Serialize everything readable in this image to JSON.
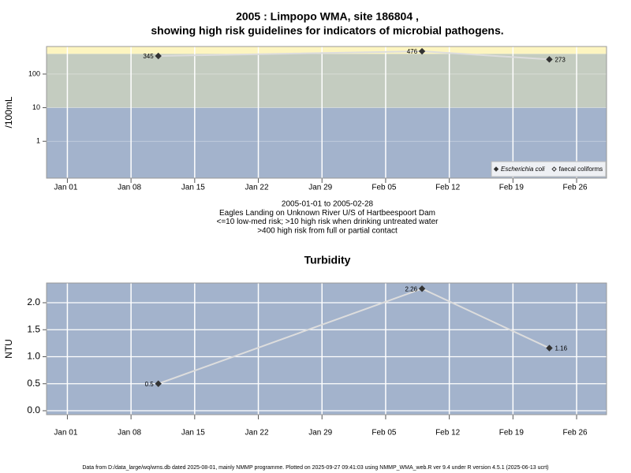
{
  "chart_data": [
    {
      "type": "line",
      "log_y": true,
      "title": [
        "2005 : Limpopo WMA, site 186804 ,",
        "showing high risk guidelines for indicators of microbial pathogens."
      ],
      "notes": [
        "2005-01-01 to 2005-02-28",
        "Eagles Landing on Unknown River U/S of Hartbeespoort Dam",
        "<=10 low-med risk; >10 high risk when drinking untreated water",
        ">400 high risk from full or partial contact"
      ],
      "ylabel": "/100mL",
      "x": [
        "2005-01-11",
        "2005-02-09",
        "2005-02-23"
      ],
      "series": [
        {
          "name": "Escherichia coli",
          "color": "#333333",
          "marker": "filled",
          "values": [
            345,
            476,
            273
          ]
        },
        {
          "name": "faecal coliforms",
          "color": "#333333",
          "marker": "open",
          "values": [
            null,
            null,
            null
          ]
        }
      ],
      "thresholds": [
        10,
        400
      ],
      "band_colors": [
        "#a3b3cc",
        "#c4ccc0",
        "#fdf5c0"
      ],
      "xlim": [
        "2004-12-29T17:00",
        "2005-03-01T07:00"
      ],
      "xticks": [
        {
          "value": "2005-01-01",
          "label": "Jan 01"
        },
        {
          "value": "2005-01-08",
          "label": "Jan 08"
        },
        {
          "value": "2005-01-15",
          "label": "Jan 15"
        },
        {
          "value": "2005-01-22",
          "label": "Jan 22"
        },
        {
          "value": "2005-01-29",
          "label": "Jan 29"
        },
        {
          "value": "2005-02-05",
          "label": "Feb 05"
        },
        {
          "value": "2005-02-12",
          "label": "Feb 12"
        },
        {
          "value": "2005-02-19",
          "label": "Feb 19"
        },
        {
          "value": "2005-02-26",
          "label": "Feb 26"
        }
      ],
      "ylim": [
        0.08,
        660
      ],
      "yticks": [
        1,
        10,
        100
      ],
      "grid": true,
      "legend": "bottom-right"
    },
    {
      "type": "line",
      "log_y": false,
      "title": [
        "Turbidity"
      ],
      "ylabel": "NTU",
      "x": [
        "2005-01-11",
        "2005-02-09",
        "2005-02-23"
      ],
      "series": [
        {
          "name": "Turbidity",
          "color": "#333333",
          "marker": "filled",
          "values": [
            0.5,
            2.26,
            1.16
          ]
        }
      ],
      "background": "#a3b3cc",
      "xlim": [
        "2004-12-29T17:00",
        "2005-03-01T07:00"
      ],
      "xticks": [
        {
          "value": "2005-01-01",
          "label": "Jan 01"
        },
        {
          "value": "2005-01-08",
          "label": "Jan 08"
        },
        {
          "value": "2005-01-15",
          "label": "Jan 15"
        },
        {
          "value": "2005-01-22",
          "label": "Jan 22"
        },
        {
          "value": "2005-01-29",
          "label": "Jan 29"
        },
        {
          "value": "2005-02-05",
          "label": "Feb 05"
        },
        {
          "value": "2005-02-12",
          "label": "Feb 12"
        },
        {
          "value": "2005-02-19",
          "label": "Feb 19"
        },
        {
          "value": "2005-02-26",
          "label": "Feb 26"
        }
      ],
      "ylim": [
        -0.073,
        2.365
      ],
      "yticks": [
        {
          "value": 0,
          "label": "0.0"
        },
        {
          "value": 0.5,
          "label": "0.5"
        },
        {
          "value": 1,
          "label": "1.0"
        },
        {
          "value": 1.5,
          "label": "1.5"
        },
        {
          "value": 2,
          "label": "2.0"
        }
      ],
      "grid": true
    }
  ],
  "footer": "Data from D:/data_large/wq/wms.db dated 2025-08-01, mainly NMMP programme. Plotted on 2025-09-27 09:41:03 using NMMP_WMA_web.R ver 9.4 under R version 4.5.1 (2025-06-13 ucrt)"
}
